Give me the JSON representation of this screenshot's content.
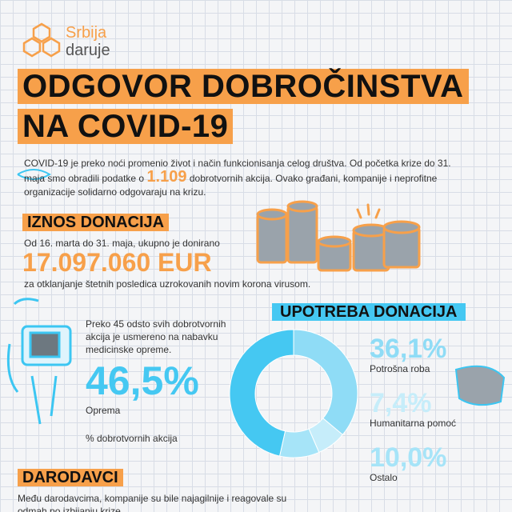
{
  "logo": {
    "line1": "Srbija",
    "line2": "daruje"
  },
  "title": {
    "line1": "ODGOVOR DOBROČINSTVA",
    "line2": "NA COVID-19"
  },
  "intro": {
    "before": "COVID-19 je preko noći promenio život i način funkcionisanja celog društva. Od početka krize do 31. maja smo obradili podatke o",
    "highlight": "1.109",
    "after": "dobrotvornih akcija. Ovako građani, kompanije i neprofitne organizacije solidarno odgovaraju na krizu."
  },
  "donations": {
    "heading": "IZNOS DONACIJA",
    "period": "Od 16. marta do 31. maja, ukupno je donirano",
    "amount": "17.097.060 EUR",
    "purpose": "za otklanjanje štetnih posledica uzrokovanih novim korona virusom."
  },
  "usage": {
    "heading": "UPOTREBA DONACIJA",
    "note": "Preko 45 odsto svih dobrotvornih akcija je usmereno na nabavku medicinske opreme.",
    "unit_label": "% dobrotvornih akcija",
    "items": [
      {
        "label": "Potrošna roba",
        "value": 36.1,
        "value_label": "36,1%",
        "color": "#8fdcf6"
      },
      {
        "label": "Humanitarna pomoć",
        "value": 7.4,
        "value_label": "7,4%",
        "color": "#c6edfa"
      },
      {
        "label": "Ostalo",
        "value": 10.0,
        "value_label": "10,0%",
        "color": "#a6e4f8"
      },
      {
        "label": "Oprema",
        "value": 46.5,
        "value_label": "46,5%",
        "color": "#45c8f2"
      }
    ]
  },
  "donors": {
    "heading": "DARODAVCI",
    "text": "Među darodavcima, kompanije su bile najagilnije i reagovale su",
    "text2": "odmah po izbijanju krize."
  }
}
